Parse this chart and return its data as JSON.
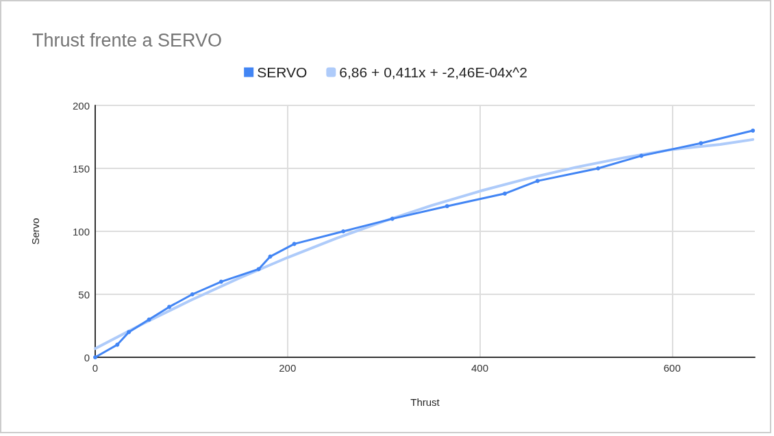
{
  "chart_data": {
    "type": "line",
    "title": "Thrust frente a SERVO",
    "xlabel": "Thrust",
    "ylabel": "Servo",
    "series": [
      {
        "name": "SERVO",
        "color": "#4285f4",
        "marker": "circle",
        "x": [
          0,
          23,
          35,
          56,
          77,
          101,
          131,
          170,
          182,
          207,
          258,
          309,
          366,
          426,
          460,
          523,
          568,
          630,
          684
        ],
        "values": [
          0,
          10,
          20,
          30,
          40,
          50,
          60,
          70,
          80,
          90,
          100,
          110,
          120,
          130,
          140,
          150,
          160,
          170,
          180
        ]
      },
      {
        "name": "6,86 + 0,411x + -2,46E-04x^2",
        "color": "#aecbfa",
        "marker": "none",
        "x": [
          0,
          50,
          100,
          150,
          200,
          250,
          300,
          350,
          400,
          450,
          500,
          550,
          600,
          650,
          684
        ],
        "values": [
          6.9,
          26.8,
          45.5,
          62.9,
          79.2,
          94.2,
          108.0,
          120.6,
          131.9,
          142.0,
          150.9,
          158.5,
          165.0,
          169.0,
          172.9
        ]
      }
    ],
    "xlim": [
      0,
      686
    ],
    "xticks": [
      0,
      200,
      400,
      600
    ],
    "ylim": [
      0,
      200
    ],
    "yticks": [
      0,
      50,
      100,
      150,
      200
    ],
    "grid": true,
    "legend": "top",
    "line_style": "solid"
  }
}
